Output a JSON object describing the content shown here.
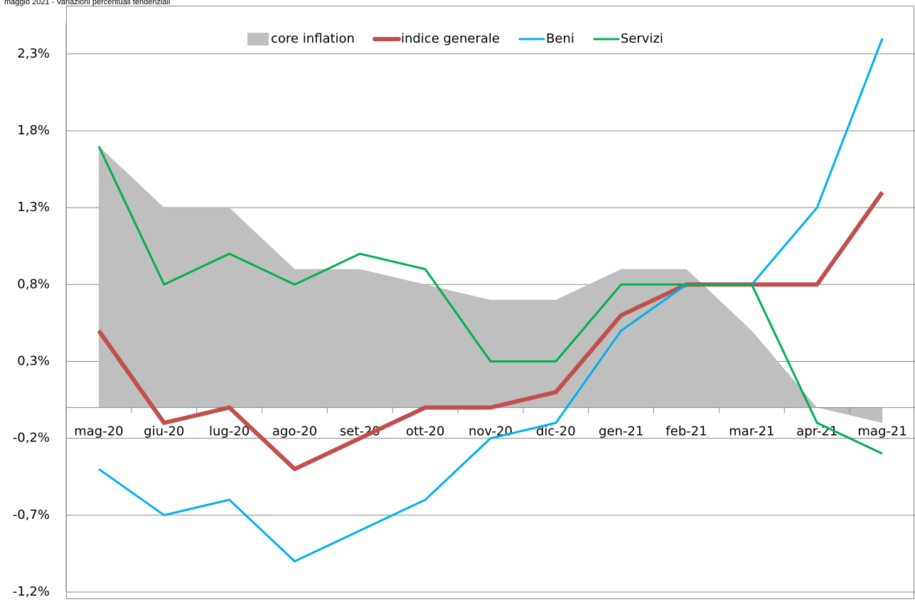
{
  "chart_data": {
    "type": "line",
    "title": "maggio 2021 - Variazioni percentuali tendenziali",
    "categories": [
      "mag-20",
      "giu-20",
      "lug-20",
      "ago-20",
      "set-20",
      "ott-20",
      "nov-20",
      "dic-20",
      "gen-21",
      "feb-21",
      "mar-21",
      "apr-21",
      "mag-21"
    ],
    "series": [
      {
        "name": "core inflation",
        "color": "#bfbfbf",
        "kind": "area",
        "values": [
          1.7,
          1.3,
          1.3,
          0.9,
          0.9,
          0.8,
          0.7,
          0.7,
          0.9,
          0.9,
          0.5,
          0.0,
          -0.1
        ]
      },
      {
        "name": "indice generale",
        "color": "#c0504d",
        "kind": "line",
        "width": 6,
        "values": [
          0.5,
          -0.1,
          0.0,
          -0.4,
          -0.2,
          0.0,
          0.0,
          0.1,
          0.6,
          0.8,
          0.8,
          0.8,
          1.4
        ]
      },
      {
        "name": "Beni",
        "color": "#00b0f0",
        "kind": "line",
        "width": 3,
        "values": [
          -0.4,
          -0.7,
          -0.6,
          -1.0,
          -0.8,
          -0.6,
          -0.2,
          -0.1,
          0.5,
          0.8,
          0.8,
          1.3,
          2.4
        ]
      },
      {
        "name": "Servizi",
        "color": "#00b050",
        "kind": "line",
        "width": 3,
        "values": [
          1.7,
          0.8,
          1.0,
          0.8,
          1.0,
          0.9,
          0.3,
          0.3,
          0.8,
          0.8,
          0.8,
          -0.1,
          -0.3
        ]
      }
    ],
    "ylim": [
      -1.2,
      2.5
    ],
    "yticks": [
      {
        "value": -1.2,
        "label": "-1,2%"
      },
      {
        "value": -0.7,
        "label": "-0,7%"
      },
      {
        "value": -0.2,
        "label": "-0,2%"
      },
      {
        "value": 0.3,
        "label": "0,3%"
      },
      {
        "value": 0.8,
        "label": "0,8%"
      },
      {
        "value": 1.3,
        "label": "1,3%"
      },
      {
        "value": 1.8,
        "label": "1,8%"
      },
      {
        "value": 2.3,
        "label": "2,3%"
      }
    ],
    "grid": true,
    "legend": "top"
  }
}
